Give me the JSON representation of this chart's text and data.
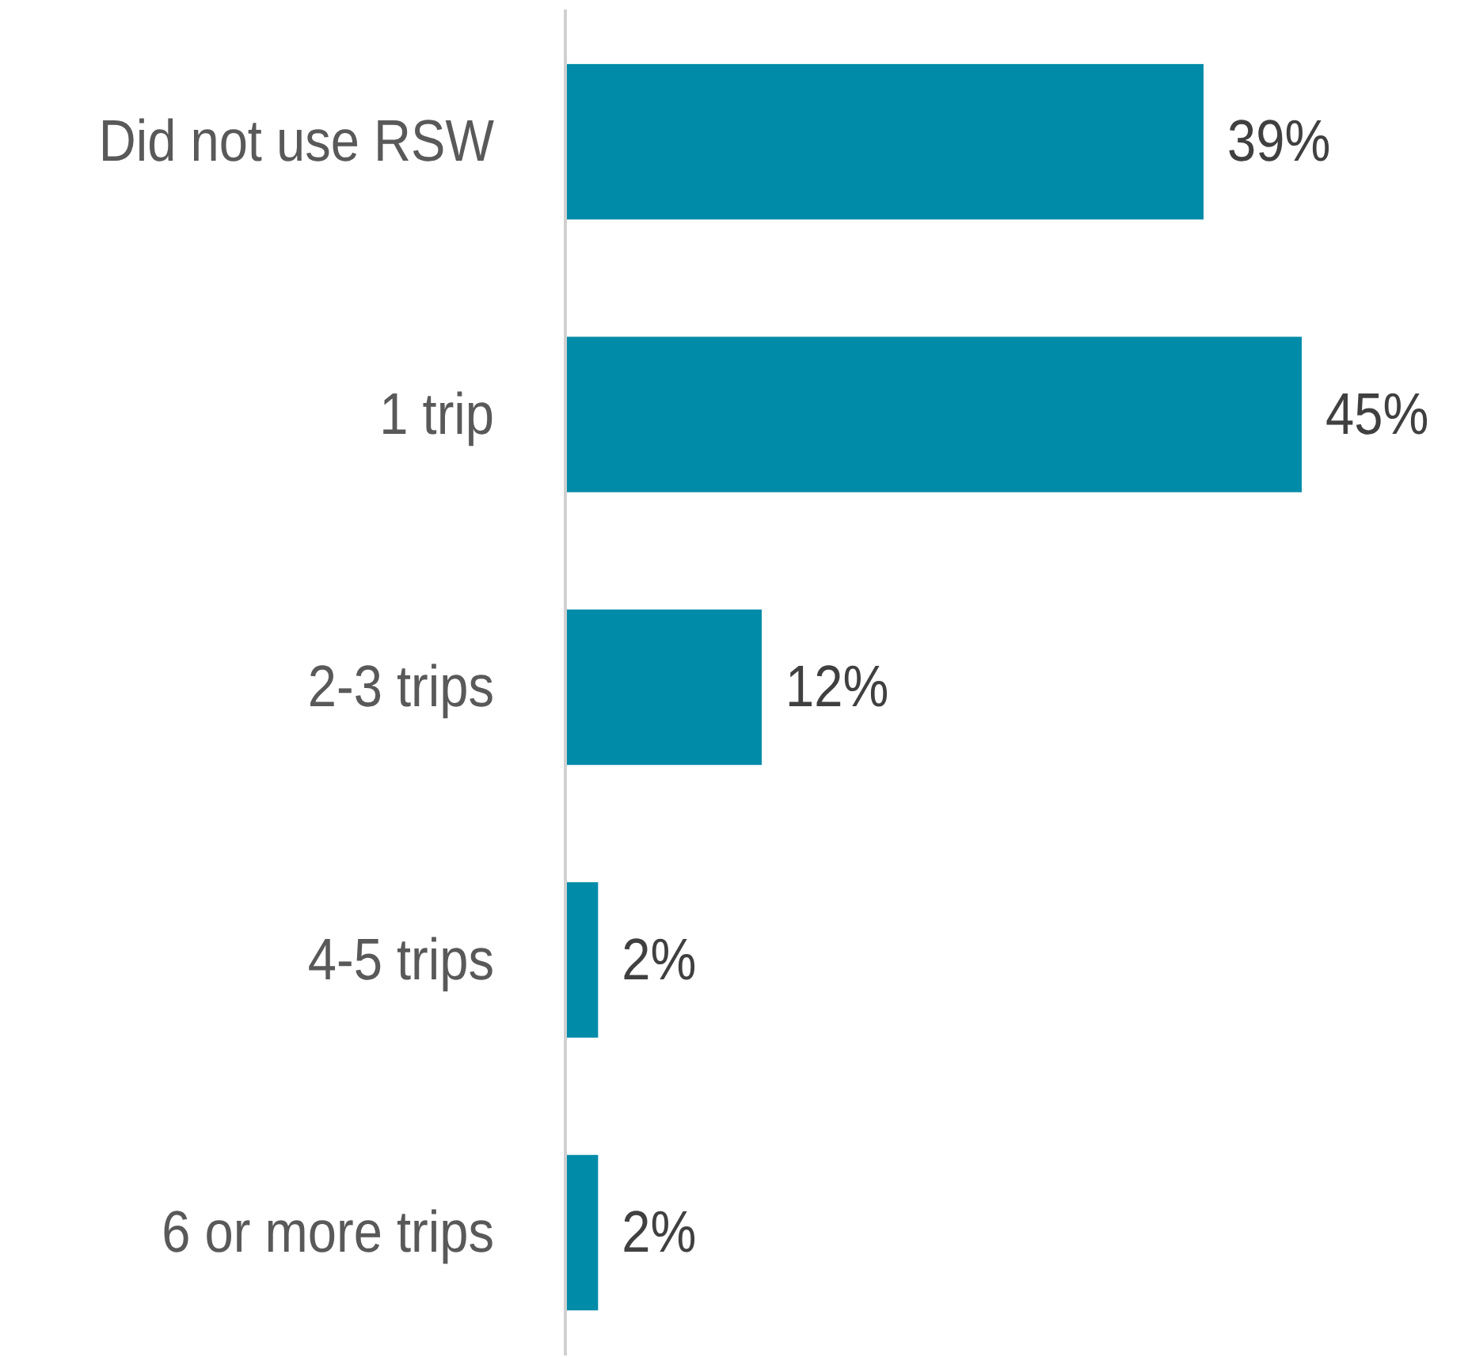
{
  "chart_data": {
    "type": "bar",
    "orientation": "horizontal",
    "categories": [
      "Did not use RSW",
      "1 trip",
      "2-3 trips",
      "4-5 trips",
      "6 or more trips"
    ],
    "values": [
      39,
      45,
      12,
      2,
      2
    ],
    "value_labels": [
      "39%",
      "45%",
      "12%",
      "2%",
      "2%"
    ],
    "color": "#008ba8"
  }
}
